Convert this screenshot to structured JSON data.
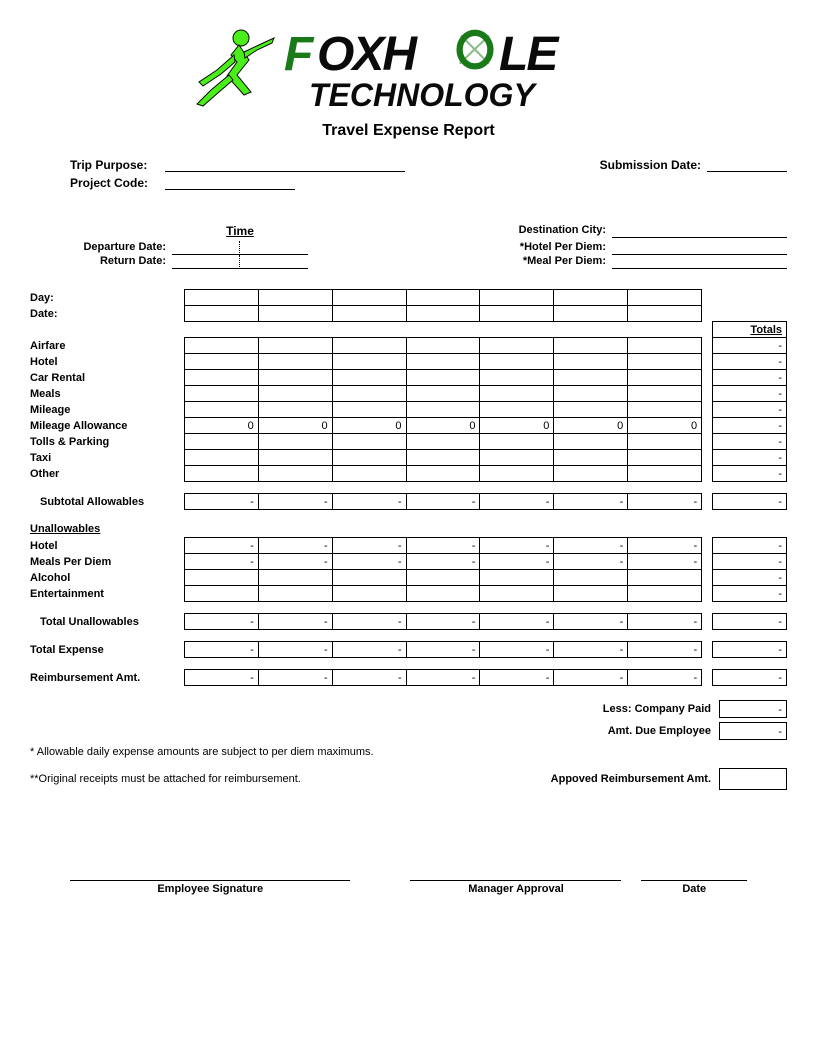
{
  "logo": {
    "company_top": "FOXH",
    "company_top2": "LE",
    "company_bottom": "TECHNOLOGY",
    "green": "#1a7a1a",
    "dark": "#0a0a0a",
    "bright_green": "#4aef1a"
  },
  "title": "Travel Expense Report",
  "header": {
    "trip_purpose_label": "Trip Purpose:",
    "project_code_label": "Project Code:",
    "submission_date_label": "Submission Date:"
  },
  "trip": {
    "time_label": "Time",
    "departure_label": "Departure Date:",
    "return_label": "Return Date:",
    "destination_label": "Destination City:",
    "hotel_diem_label": "*Hotel Per Diem:",
    "meal_diem_label": "*Meal Per Diem:"
  },
  "grid": {
    "day_label": "Day:",
    "date_label": "Date:",
    "totals_label": "Totals",
    "num_cols": 7,
    "allowables": [
      {
        "label": "Airfare",
        "values": [
          "",
          "",
          "",
          "",
          "",
          "",
          ""
        ],
        "total": "-"
      },
      {
        "label": "Hotel",
        "values": [
          "",
          "",
          "",
          "",
          "",
          "",
          ""
        ],
        "total": "-"
      },
      {
        "label": "Car Rental",
        "values": [
          "",
          "",
          "",
          "",
          "",
          "",
          ""
        ],
        "total": "-"
      },
      {
        "label": "Meals",
        "values": [
          "",
          "",
          "",
          "",
          "",
          "",
          ""
        ],
        "total": "-"
      },
      {
        "label": "Mileage",
        "values": [
          "",
          "",
          "",
          "",
          "",
          "",
          ""
        ],
        "total": "-"
      },
      {
        "label": "Mileage Allowance",
        "values": [
          "0",
          "0",
          "0",
          "0",
          "0",
          "0",
          "0"
        ],
        "total": "-"
      },
      {
        "label": "Tolls & Parking",
        "values": [
          "",
          "",
          "",
          "",
          "",
          "",
          ""
        ],
        "total": "-"
      },
      {
        "label": "Taxi",
        "values": [
          "",
          "",
          "",
          "",
          "",
          "",
          ""
        ],
        "total": "-"
      },
      {
        "label": "Other",
        "values": [
          "",
          "",
          "",
          "",
          "",
          "",
          ""
        ],
        "total": "-"
      }
    ],
    "subtotal_label": "Subtotal Allowables",
    "subtotal_values": [
      "-",
      "-",
      "-",
      "-",
      "-",
      "-",
      "-"
    ],
    "subtotal_total": "-",
    "unallowables_header": "Unallowables",
    "unallowables": [
      {
        "label": "Hotel",
        "values": [
          "-",
          "-",
          "-",
          "-",
          "-",
          "-",
          "-"
        ],
        "total": "-"
      },
      {
        "label": "Meals Per Diem",
        "values": [
          "-",
          "-",
          "-",
          "-",
          "-",
          "-",
          "-"
        ],
        "total": "-"
      },
      {
        "label": "Alcohol",
        "values": [
          "",
          "",
          "",
          "",
          "",
          "",
          ""
        ],
        "total": "-"
      },
      {
        "label": "Entertainment",
        "values": [
          "",
          "",
          "",
          "",
          "",
          "",
          ""
        ],
        "total": "-"
      }
    ],
    "total_unallow_label": "Total Unallowables",
    "total_unallow_values": [
      "-",
      "-",
      "-",
      "-",
      "-",
      "-",
      "-"
    ],
    "total_unallow_total": "-",
    "total_expense_label": "Total Expense",
    "total_expense_values": [
      "-",
      "-",
      "-",
      "-",
      "-",
      "-",
      "-"
    ],
    "total_expense_total": "-",
    "reimb_label": "Reimbursement Amt.",
    "reimb_values": [
      "-",
      "-",
      "-",
      "-",
      "-",
      "-",
      "-"
    ],
    "reimb_total": "-"
  },
  "summary": {
    "less_company_label": "Less: Company Paid",
    "less_company_value": "-",
    "due_employee_label": "Amt. Due Employee",
    "due_employee_value": "-",
    "approved_label": "Appoved Reimbursement Amt.",
    "approved_value": ""
  },
  "footnotes": {
    "note1": "* Allowable daily expense amounts are subject to per diem maximums.",
    "note2": "**Original receipts must be attached for reimbursement."
  },
  "signatures": {
    "employee": "Employee Signature",
    "manager": "Manager Approval",
    "date": "Date"
  },
  "col_widths": {
    "label": 142,
    "data": 68,
    "gap": 10,
    "total": 68
  }
}
